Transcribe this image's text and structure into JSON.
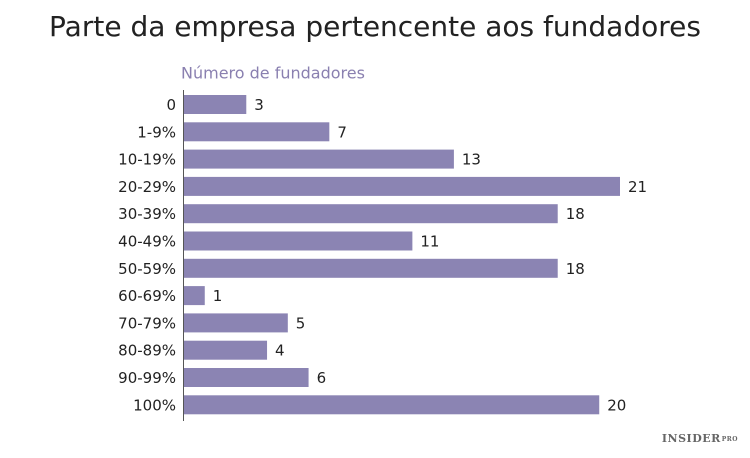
{
  "chart_data": {
    "type": "bar",
    "orientation": "horizontal",
    "title": "Parte da empresa pertencente aos fundadores",
    "x_label": "Número de fundadores",
    "categories": [
      "0",
      "1-9%",
      "10-19%",
      "20-29%",
      "30-39%",
      "40-49%",
      "50-59%",
      "60-69%",
      "70-79%",
      "80-89%",
      "90-99%",
      "100%"
    ],
    "values": [
      3,
      7,
      13,
      21,
      18,
      11,
      18,
      1,
      5,
      4,
      6,
      20
    ],
    "color": "#8b84b3",
    "xlim": [
      0,
      21
    ],
    "brand": "INSIDER",
    "brand_tag": "PRO"
  }
}
